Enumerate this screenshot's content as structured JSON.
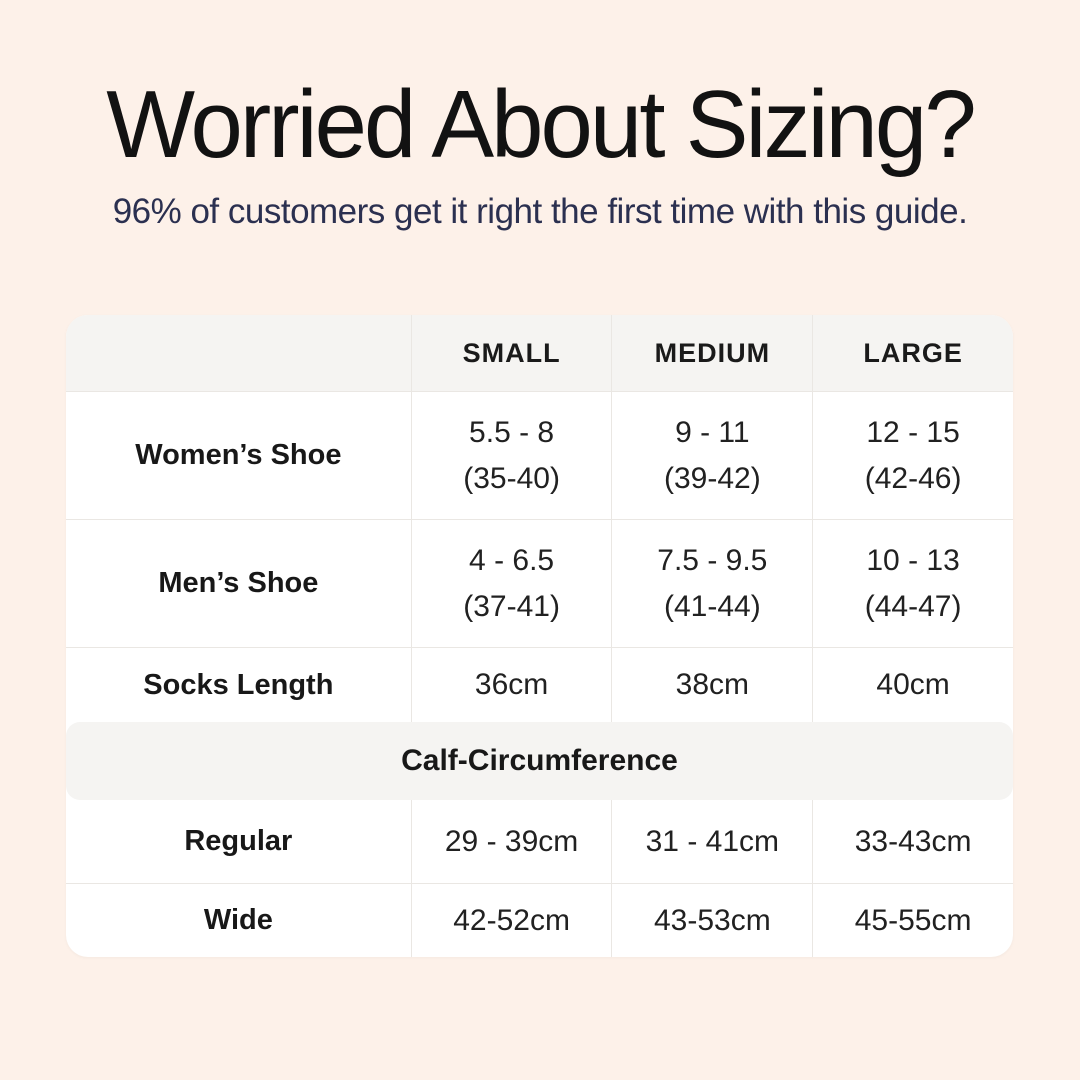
{
  "page": {
    "background_color": "#fdf1e9",
    "title": "Worried About Sizing?",
    "subtitle": "96% of customers get it right the first time with this guide.",
    "title_color": "#121212",
    "subtitle_color": "#2b3050"
  },
  "table": {
    "card_color": "#ffffff",
    "band_color": "#f5f4f2",
    "divider_color": "#eae7e3",
    "columns": [
      "",
      "SMALL",
      "MEDIUM",
      "LARGE"
    ],
    "rows": [
      {
        "label": "Women’s Shoe",
        "cells": [
          [
            "5.5 - 8",
            "(35-40)"
          ],
          [
            "9 - 11",
            "(39-42)"
          ],
          [
            "12 - 15",
            "(42-46)"
          ]
        ]
      },
      {
        "label": "Men’s Shoe",
        "cells": [
          [
            "4 - 6.5",
            "(37-41)"
          ],
          [
            "7.5 - 9.5",
            "(41-44)"
          ],
          [
            "10 - 13",
            "(44-47)"
          ]
        ]
      },
      {
        "label": "Socks Length",
        "cells": [
          [
            "36cm"
          ],
          [
            "38cm"
          ],
          [
            "40cm"
          ]
        ]
      }
    ],
    "section_header": "Calf-Circumference",
    "section_rows": [
      {
        "label": "Regular",
        "cells": [
          "29 - 39cm",
          "31 - 41cm",
          "33-43cm"
        ]
      },
      {
        "label": "Wide",
        "cells": [
          "42-52cm",
          "43-53cm",
          "45-55cm"
        ]
      }
    ]
  },
  "chart_data": {
    "type": "table",
    "title": "Worried About Sizing?",
    "subtitle": "96% of customers get it right the first time with this guide.",
    "columns": [
      "",
      "SMALL",
      "MEDIUM",
      "LARGE"
    ],
    "rows": [
      [
        "Women’s Shoe",
        "5.5 - 8 (35-40)",
        "9 - 11 (39-42)",
        "12 - 15 (42-46)"
      ],
      [
        "Men’s Shoe",
        "4 - 6.5 (37-41)",
        "7.5 - 9.5 (41-44)",
        "10 - 13 (44-47)"
      ],
      [
        "Socks Length",
        "36cm",
        "38cm",
        "40cm"
      ],
      [
        "Calf-Circumference",
        "",
        "",
        ""
      ],
      [
        "Regular",
        "29 - 39cm",
        "31 - 41cm",
        "33-43cm"
      ],
      [
        "Wide",
        "42-52cm",
        "43-53cm",
        "45-55cm"
      ]
    ]
  }
}
